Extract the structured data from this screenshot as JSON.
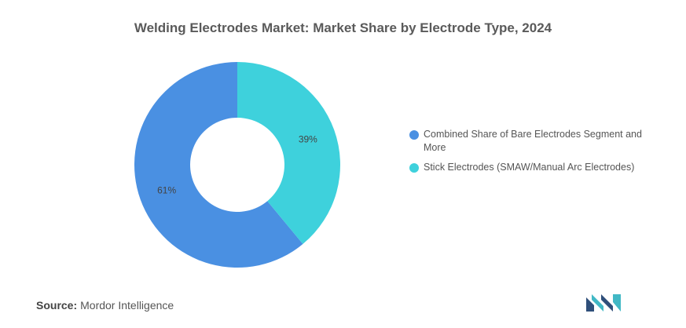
{
  "title": "Welding Electrodes Market: Market Share by Electrode Type, 2024",
  "chart_data": {
    "type": "pie",
    "donut": true,
    "categories": [
      "Combined Share of Bare Electrodes Segment and More",
      "Stick Electrodes (SMAW/Manual Arc Electrodes)"
    ],
    "values": [
      61,
      39
    ],
    "labels": [
      "61%",
      "39%"
    ],
    "colors": [
      "#4a90e2",
      "#3ed1dc"
    ],
    "legend_position": "right"
  },
  "source": {
    "label": "Source:",
    "value": "Mordor Intelligence"
  },
  "logo": {
    "colors": [
      "#2f4f7a",
      "#41b8c5"
    ]
  }
}
